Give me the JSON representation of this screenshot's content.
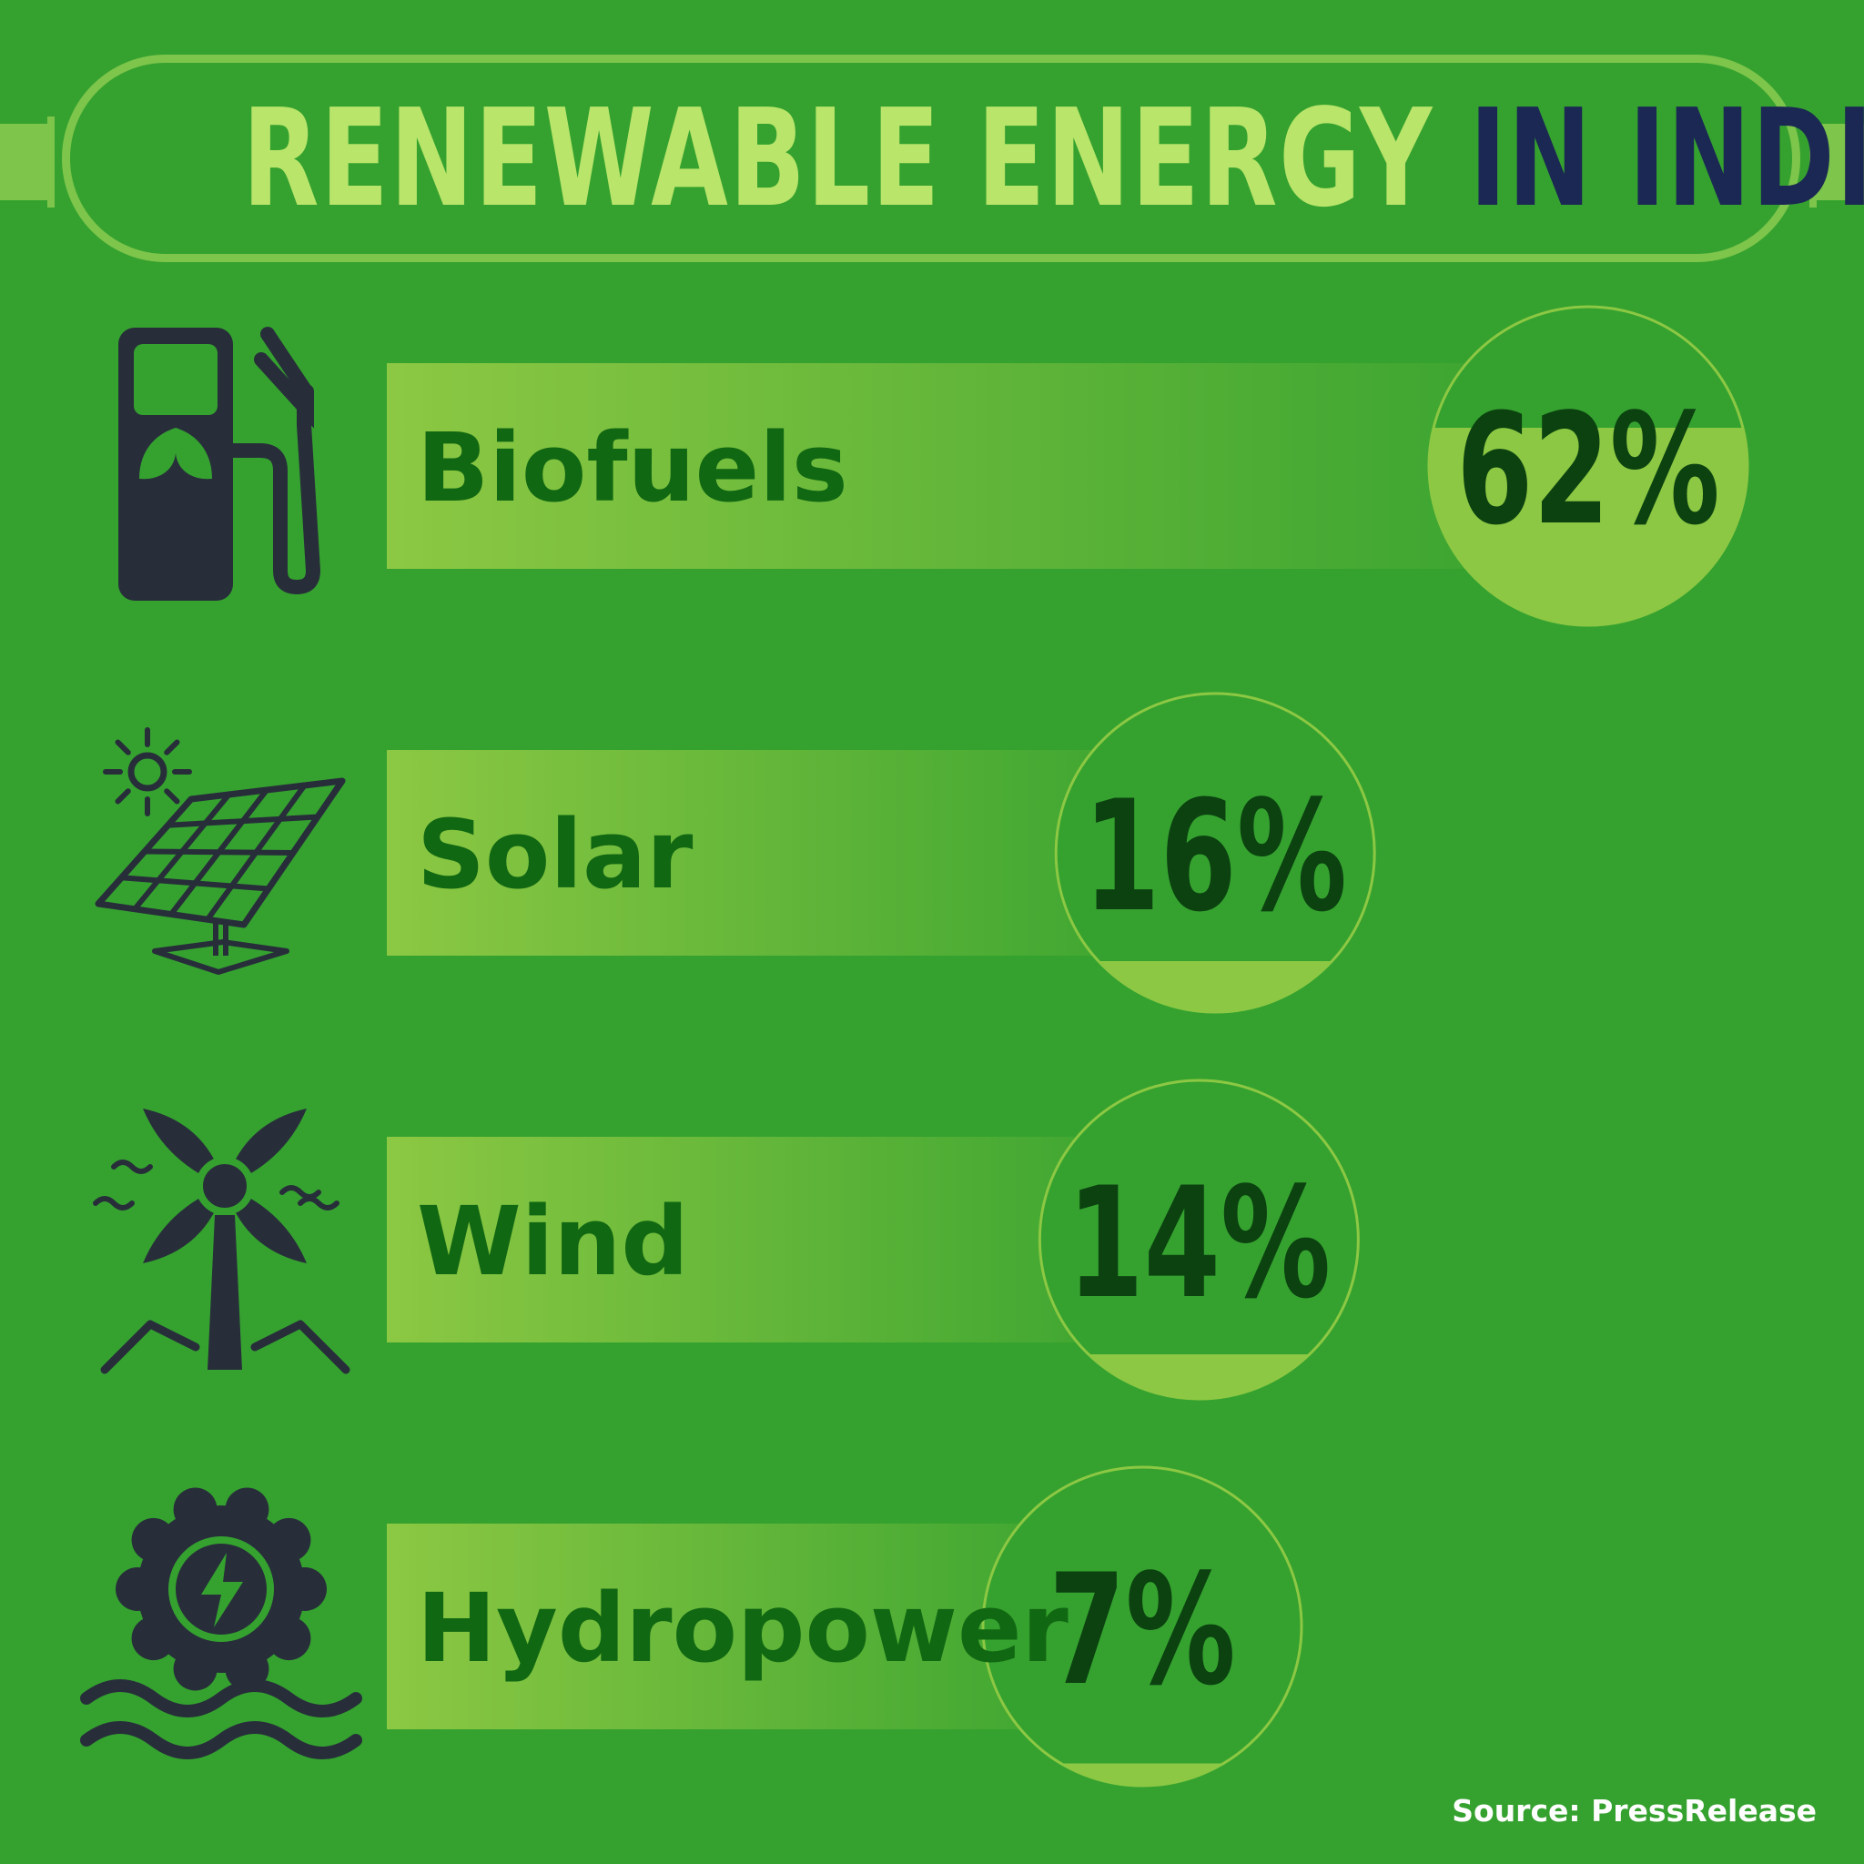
{
  "header": {
    "title_part1": "RENEWABLE ENERGY",
    "title_part2": "IN INDIA"
  },
  "source": "Source: PressRelease",
  "colors": {
    "background": "#35a22f",
    "frame": "#7dc54b",
    "title_light": "#b8e56a",
    "title_dark": "#1b2853",
    "bar_start": "#8cc843",
    "bar_end": "#35a22f",
    "circle_fill": "#8cc843",
    "label_text": "#116812",
    "value_text": "#0b4210",
    "icon": "#272e3a"
  },
  "chart_data": {
    "type": "bar",
    "title": "RENEWABLE ENERGY IN INDIA",
    "categories": [
      "Biofuels",
      "Solar",
      "Wind",
      "Hydropower"
    ],
    "values": [
      62,
      16,
      14,
      7
    ],
    "value_labels": [
      "62%",
      "16%",
      "14%",
      "7%"
    ],
    "icons": [
      "fuel-pump-icon",
      "solar-panel-icon",
      "wind-turbine-icon",
      "hydropower-icon"
    ],
    "unit": "%",
    "xlabel": "",
    "ylabel": "",
    "ylim": [
      0,
      100
    ],
    "orientation": "horizontal",
    "grid": false,
    "legend": "none"
  }
}
